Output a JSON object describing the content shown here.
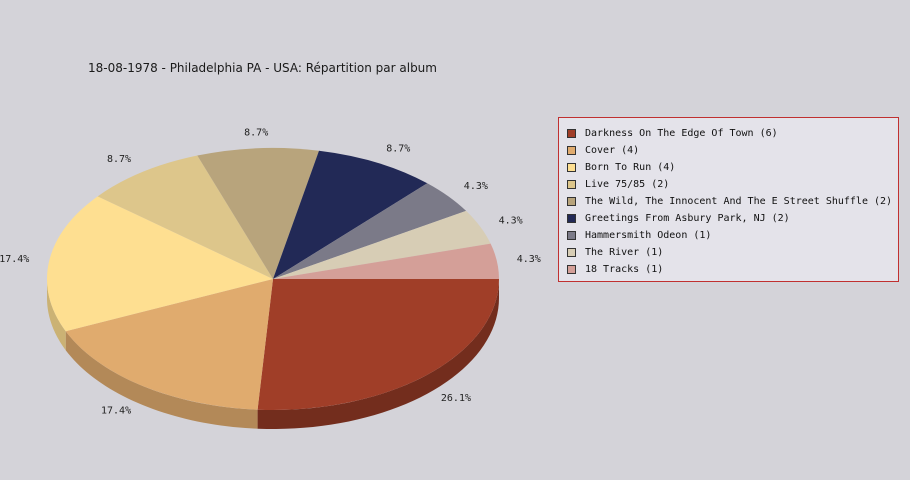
{
  "chart_data": {
    "type": "pie",
    "title": "18-08-1978 - Philadelphia PA - USA:  Répartition par album",
    "slices": [
      {
        "name": "Darkness On The Edge Of Town (6)",
        "value": 6,
        "label": "26.1%",
        "color": "#a03e28"
      },
      {
        "name": "Cover (4)",
        "value": 4,
        "label": "17.4%",
        "color": "#e0ab6e"
      },
      {
        "name": "Born To Run (4)",
        "value": 4,
        "label": "17.4%",
        "color": "#fedf91"
      },
      {
        "name": "Live 75/85 (2)",
        "value": 2,
        "label": "8.7%",
        "color": "#ddc68b"
      },
      {
        "name": "The Wild, The Innocent And The E Street Shuffle (2)",
        "value": 2,
        "label": "8.7%",
        "color": "#b8a47c"
      },
      {
        "name": "Greetings From Asbury Park, NJ (2)",
        "value": 2,
        "label": "8.7%",
        "color": "#222956"
      },
      {
        "name": "Hammersmith Odeon  (1)",
        "value": 1,
        "label": "4.3%",
        "color": "#7b7a88"
      },
      {
        "name": "The River (1)",
        "value": 1,
        "label": "4.3%",
        "color": "#d7cdb5"
      },
      {
        "name": "18 Tracks (1)",
        "value": 1,
        "label": "4.3%",
        "color": "#d49f98"
      }
    ],
    "legend_position": "right"
  }
}
